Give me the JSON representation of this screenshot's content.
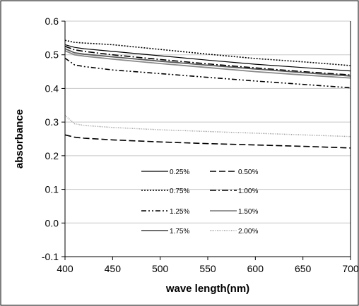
{
  "chart_data": {
    "type": "line",
    "title": "",
    "xlabel": "wave length(nm)",
    "ylabel": "absorbance",
    "xlim": [
      400,
      700
    ],
    "ylim": [
      -0.1,
      0.6
    ],
    "xticks": [
      "400",
      "450",
      "500",
      "550",
      "600",
      "650",
      "700"
    ],
    "yticks": [
      "-0.1",
      "0.0",
      "0.1",
      "0.2",
      "0.3",
      "0.4",
      "0.5",
      "0.6"
    ],
    "grid": "horizontal",
    "legend_position": "bottom-center",
    "x": [
      400,
      410,
      420,
      450,
      500,
      550,
      600,
      650,
      700
    ],
    "series": [
      {
        "name": "0.25%",
        "values": [
          0.53,
          0.522,
          0.518,
          0.51,
          0.497,
          0.484,
          0.472,
          0.462,
          0.452
        ]
      },
      {
        "name": "0.50%",
        "values": [
          0.262,
          0.255,
          0.252,
          0.247,
          0.241,
          0.236,
          0.232,
          0.228,
          0.223
        ]
      },
      {
        "name": "0.75%",
        "values": [
          0.543,
          0.537,
          0.535,
          0.53,
          0.516,
          0.502,
          0.489,
          0.479,
          0.468
        ]
      },
      {
        "name": "1.00%",
        "values": [
          0.525,
          0.515,
          0.51,
          0.5,
          0.486,
          0.473,
          0.461,
          0.45,
          0.44
        ]
      },
      {
        "name": "1.25%",
        "values": [
          0.49,
          0.47,
          0.465,
          0.455,
          0.444,
          0.433,
          0.422,
          0.412,
          0.402
        ]
      },
      {
        "name": "1.50%",
        "values": [
          0.512,
          0.5,
          0.496,
          0.487,
          0.474,
          0.462,
          0.45,
          0.44,
          0.431
        ]
      },
      {
        "name": "1.75%",
        "values": [
          0.518,
          0.506,
          0.502,
          0.494,
          0.481,
          0.469,
          0.458,
          0.447,
          0.437
        ]
      },
      {
        "name": "2.00%",
        "values": [
          0.32,
          0.295,
          0.29,
          0.284,
          0.277,
          0.272,
          0.267,
          0.262,
          0.257
        ]
      }
    ],
    "styles": {
      "0.25%": {
        "dash": "",
        "width": 1.2,
        "color": "#000000"
      },
      "0.50%": {
        "dash": "9 4",
        "width": 1.6,
        "color": "#000000"
      },
      "0.75%": {
        "dash": "2 2",
        "width": 1.6,
        "color": "#000000"
      },
      "1.00%": {
        "dash": "9 3 2 3",
        "width": 1.6,
        "color": "#000000"
      },
      "1.25%": {
        "dash": "7 3 2 3 2 3",
        "width": 1.6,
        "color": "#000000"
      },
      "1.50%": {
        "dash": "",
        "width": 1.8,
        "color": "#8a8a8a"
      },
      "1.75%": {
        "dash": "",
        "width": 1.8,
        "color": "#5a5a5a"
      },
      "2.00%": {
        "dash": "1 1.5",
        "width": 1.5,
        "color": "#9a9a9a"
      }
    }
  }
}
